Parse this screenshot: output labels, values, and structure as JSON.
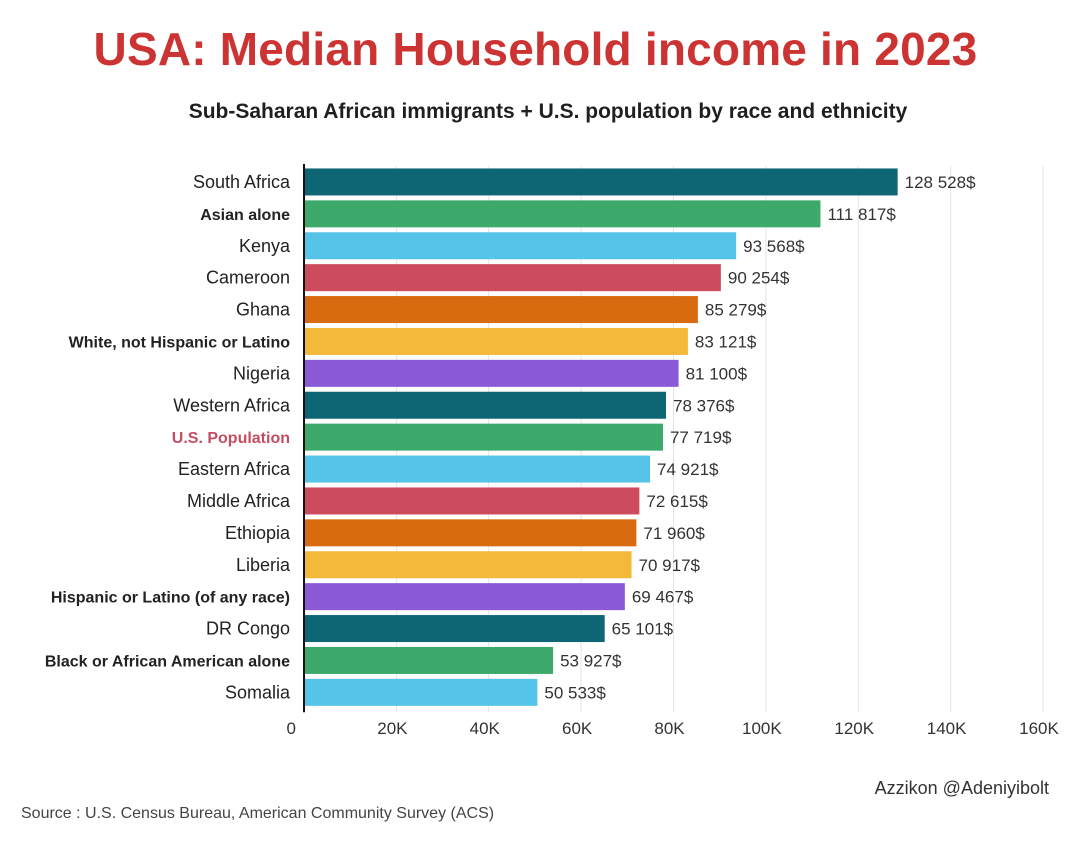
{
  "header": {
    "title": "USA: Median Household income in 2023",
    "subtitle": "Sub-Saharan African immigrants + U.S. population by race and ethnicity"
  },
  "footer": {
    "credit": "Azzikon @Adeniyibolt",
    "source": "Source : U.S. Census Bureau, American Community Survey (ACS)"
  },
  "colors": {
    "teal": "#0e6675",
    "green": "#3daa6c",
    "sky": "#56c3e8",
    "red": "#cc4b5c",
    "orange": "#d86a10",
    "yellow": "#f4b93a",
    "purple": "#8b5ad8",
    "title": "#cc3333",
    "highlight": "#c44d62"
  },
  "chart_data": {
    "type": "bar",
    "orientation": "horizontal",
    "title": "USA: Median Household income in 2023",
    "subtitle": "Sub-Saharan African immigrants + U.S. population by race and ethnicity",
    "categories": [
      "South Africa",
      "Asian alone",
      "Kenya",
      "Cameroon",
      "Ghana",
      "White, not Hispanic or Latino",
      "Nigeria",
      "Western Africa",
      "U.S. Population",
      "Eastern Africa",
      "Middle Africa",
      "Ethiopia",
      "Liberia",
      "Hispanic or Latino (of any race)",
      "DR Congo",
      "Black or African American alone",
      "Somalia"
    ],
    "values": [
      128528,
      111817,
      93568,
      90254,
      85279,
      83121,
      81100,
      78376,
      77719,
      74921,
      72615,
      71960,
      70917,
      69467,
      65101,
      53927,
      50533
    ],
    "value_labels": [
      "128 528$",
      "111 817$",
      "93 568$",
      "90 254$",
      "85 279$",
      "83 121$",
      "81 100$",
      "78 376$",
      "77 719$",
      "74 921$",
      "72 615$",
      "71 960$",
      "70 917$",
      "69 467$",
      "65 101$",
      "53 927$",
      "50 533$"
    ],
    "bar_colors": [
      "#0e6675",
      "#3daa6c",
      "#56c3e8",
      "#cc4b5c",
      "#d86a10",
      "#f4b93a",
      "#8b5ad8",
      "#0e6675",
      "#3daa6c",
      "#56c3e8",
      "#cc4b5c",
      "#d86a10",
      "#f4b93a",
      "#8b5ad8",
      "#0e6675",
      "#3daa6c",
      "#56c3e8"
    ],
    "bold_categories": [
      "Asian alone",
      "White, not Hispanic or Latino",
      "U.S. Population",
      "Hispanic or Latino (of any race)",
      "Black or African American alone"
    ],
    "highlight_category": "U.S. Population",
    "xlim": [
      0,
      160000
    ],
    "x_ticks": [
      0,
      20000,
      40000,
      60000,
      80000,
      100000,
      120000,
      140000,
      160000
    ],
    "x_tick_labels": [
      "0",
      "20K",
      "40K",
      "60K",
      "80K",
      "100K",
      "120K",
      "140K",
      "160K"
    ],
    "grid": "vertical",
    "xlabel": "",
    "ylabel": ""
  }
}
